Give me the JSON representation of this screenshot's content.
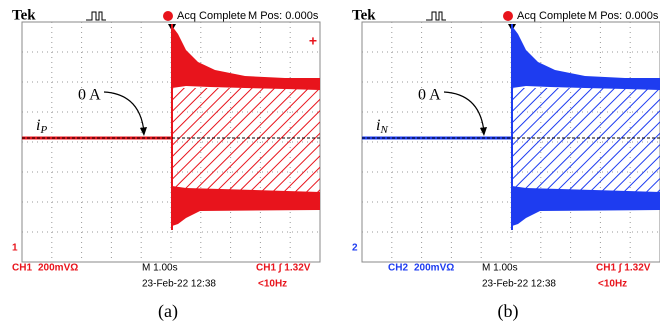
{
  "panels": [
    {
      "header": {
        "brand": "Tek",
        "status": "Acq Complete",
        "position": "M Pos: 0.000s"
      },
      "annotation": "0 A",
      "label": {
        "main": "i",
        "sub": "P"
      },
      "channel_marker": "1",
      "footer": {
        "channel": "CH1",
        "scale": "200mVΩ",
        "timebase": "M 1.00s",
        "trigger": "CH1 ∫ 1.32V",
        "date": "23-Feb-22 12:38",
        "frequency": "<10Hz"
      },
      "caption": "(a)"
    },
    {
      "header": {
        "brand": "Tek",
        "status": "Acq Complete",
        "position": "M Pos: 0.000s"
      },
      "annotation": "0 A",
      "label": {
        "main": "i",
        "sub": "N"
      },
      "channel_marker": "2",
      "footer": {
        "channel": "CH2",
        "scale": "200mVΩ",
        "timebase": "M 1.00s",
        "trigger": "CH1 ∫ 1.32V",
        "date": "23-Feb-22 12:38",
        "frequency": "<10Hz"
      },
      "caption": "(b)"
    }
  ]
}
